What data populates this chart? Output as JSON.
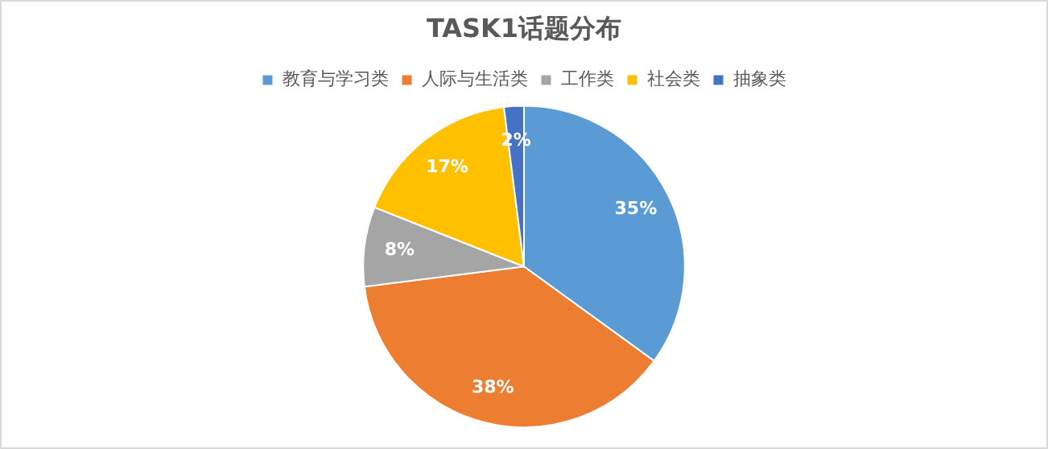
{
  "chart_data": {
    "type": "pie",
    "title": "TASK1话题分布",
    "categories": [
      "教育与学习类",
      "人际与生活类",
      "工作类",
      "社会类",
      "抽象类"
    ],
    "values": [
      35,
      38,
      8,
      17,
      2
    ],
    "colors": [
      "#5b9bd5",
      "#ed7d31",
      "#a5a5a5",
      "#ffc000",
      "#4472c4"
    ],
    "value_labels": [
      "35%",
      "38%",
      "8%",
      "17%",
      "2%"
    ],
    "legend": "top"
  }
}
